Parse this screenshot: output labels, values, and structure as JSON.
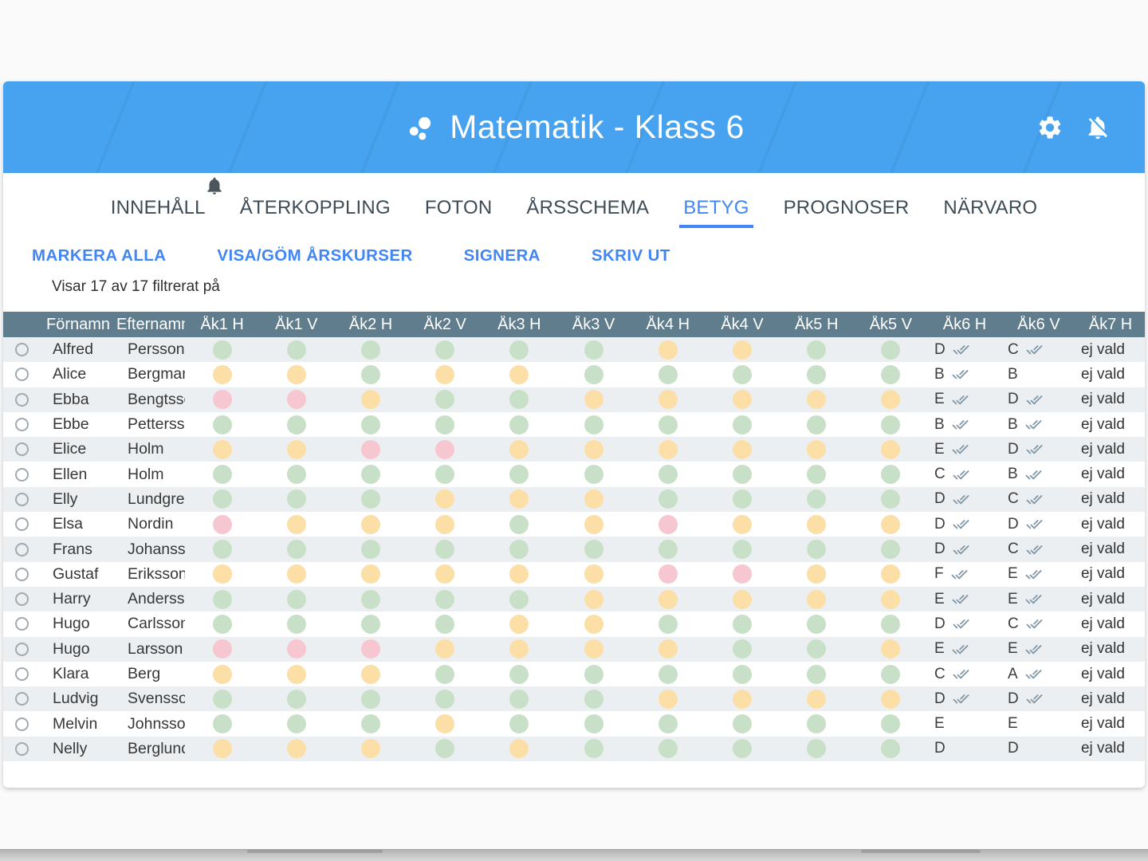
{
  "app": {
    "title": "Matematik - Klass 6",
    "accent_color": "#4186f5",
    "appbar_color": "#47a3f0",
    "icons": {
      "left_of_title": "bubbles-icon",
      "right_1": "gear-icon",
      "right_2": "notifications-off-icon",
      "floating": "bell-icon"
    }
  },
  "tabs": [
    {
      "label": "INNEHÅLL",
      "active": false
    },
    {
      "label": "ÅTERKOPPLING",
      "active": false
    },
    {
      "label": "FOTON",
      "active": false
    },
    {
      "label": "ÅRSSCHEMA",
      "active": false
    },
    {
      "label": "BETYG",
      "active": true
    },
    {
      "label": "PROGNOSER",
      "active": false
    },
    {
      "label": "NÄRVARO",
      "active": false
    }
  ],
  "toolbar": {
    "buttons": [
      "MARKERA ALLA",
      "VISA/GÖM ÅRSKURSER",
      "SIGNERA",
      "SKRIV UT"
    ]
  },
  "filter_status": "Visar 17 av 17 filtrerat på",
  "table": {
    "columns": [
      "Förnamn",
      "Efternamn",
      "Åk1 H",
      "Åk1 V",
      "Åk2 H",
      "Åk2 V",
      "Åk3 H",
      "Åk3 V",
      "Åk4 H",
      "Åk4 V",
      "Åk5 H",
      "Åk5 V",
      "Åk6 H",
      "Åk6 V",
      "Åk7 H"
    ],
    "header_bg": "#5f7d8d",
    "dot_colors": {
      "g": "#c8e0c7",
      "y": "#fcdea7",
      "r": "#f6c7d0"
    },
    "not_chosen_label": "ej vald",
    "rows": [
      {
        "first": "Alfred",
        "last": "Persson",
        "dots": "ggggggyygg",
        "ak6h": {
          "grade": "D",
          "signed": true
        },
        "ak6v": {
          "grade": "C",
          "signed": true
        },
        "ak7h": "ej vald"
      },
      {
        "first": "Alice",
        "last": "Bergman",
        "dots": "yygyyggggg",
        "ak6h": {
          "grade": "B",
          "signed": true
        },
        "ak6v": {
          "grade": "B",
          "signed": false
        },
        "ak7h": "ej vald"
      },
      {
        "first": "Ebba",
        "last": "Bengtsson",
        "dots": "rryggyyyyy",
        "ak6h": {
          "grade": "E",
          "signed": true
        },
        "ak6v": {
          "grade": "D",
          "signed": true
        },
        "ak7h": "ej vald"
      },
      {
        "first": "Ebbe",
        "last": "Pettersson",
        "dots": "gggggggggg",
        "ak6h": {
          "grade": "B",
          "signed": true
        },
        "ak6v": {
          "grade": "B",
          "signed": true
        },
        "ak7h": "ej vald"
      },
      {
        "first": "Elice",
        "last": "Holm",
        "dots": "yyrryyyyyy",
        "ak6h": {
          "grade": "E",
          "signed": true
        },
        "ak6v": {
          "grade": "D",
          "signed": true
        },
        "ak7h": "ej vald"
      },
      {
        "first": "Ellen",
        "last": "Holm",
        "dots": "gggggggggg",
        "ak6h": {
          "grade": "C",
          "signed": true
        },
        "ak6v": {
          "grade": "B",
          "signed": true
        },
        "ak7h": "ej vald"
      },
      {
        "first": "Elly",
        "last": "Lundgren",
        "dots": "gggyyygggg",
        "ak6h": {
          "grade": "D",
          "signed": true
        },
        "ak6v": {
          "grade": "C",
          "signed": true
        },
        "ak7h": "ej vald"
      },
      {
        "first": "Elsa",
        "last": "Nordin",
        "dots": "ryyygyryyy",
        "ak6h": {
          "grade": "D",
          "signed": true
        },
        "ak6v": {
          "grade": "D",
          "signed": true
        },
        "ak7h": "ej vald"
      },
      {
        "first": "Frans",
        "last": "Johansson",
        "dots": "gggggggggg",
        "ak6h": {
          "grade": "D",
          "signed": true
        },
        "ak6v": {
          "grade": "C",
          "signed": true
        },
        "ak7h": "ej vald"
      },
      {
        "first": "Gustaf",
        "last": "Eriksson",
        "dots": "yyyyyyrryy",
        "ak6h": {
          "grade": "F",
          "signed": true
        },
        "ak6v": {
          "grade": "E",
          "signed": true
        },
        "ak7h": "ej vald"
      },
      {
        "first": "Harry",
        "last": "Andersson",
        "dots": "gggggyyyyy",
        "ak6h": {
          "grade": "E",
          "signed": true
        },
        "ak6v": {
          "grade": "E",
          "signed": true
        },
        "ak7h": "ej vald"
      },
      {
        "first": "Hugo",
        "last": "Carlsson",
        "dots": "ggggyygggg",
        "ak6h": {
          "grade": "D",
          "signed": true
        },
        "ak6v": {
          "grade": "C",
          "signed": true
        },
        "ak7h": "ej vald"
      },
      {
        "first": "Hugo",
        "last": "Larsson",
        "dots": "rrryyyyggy",
        "ak6h": {
          "grade": "E",
          "signed": true
        },
        "ak6v": {
          "grade": "E",
          "signed": true
        },
        "ak7h": "ej vald"
      },
      {
        "first": "Klara",
        "last": "Berg",
        "dots": "yyyggggggg",
        "ak6h": {
          "grade": "C",
          "signed": true
        },
        "ak6v": {
          "grade": "A",
          "signed": true
        },
        "ak7h": "ej vald"
      },
      {
        "first": "Ludvig",
        "last": "Svensson",
        "dots": "ggggggyyyy",
        "ak6h": {
          "grade": "D",
          "signed": true
        },
        "ak6v": {
          "grade": "D",
          "signed": true
        },
        "ak7h": "ej vald"
      },
      {
        "first": "Melvin",
        "last": "Johnsson",
        "dots": "gggygggggg",
        "ak6h": {
          "grade": "E",
          "signed": false
        },
        "ak6v": {
          "grade": "E",
          "signed": false
        },
        "ak7h": "ej vald"
      },
      {
        "first": "Nelly",
        "last": "Berglund",
        "dots": "yyygyggggg",
        "ak6h": {
          "grade": "D",
          "signed": false
        },
        "ak6v": {
          "grade": "D",
          "signed": false
        },
        "ak7h": "ej vald"
      }
    ]
  }
}
